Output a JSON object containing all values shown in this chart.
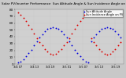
{
  "title": "Solar PV/Inverter Performance  Sun Altitude Angle & Sun Incidence Angle on PV Panels",
  "title_fontsize": 3.0,
  "blue_label": "Sun Altitude Angle",
  "red_label": "Sun Incidence Angle on PV",
  "background_color": "#c8c8c8",
  "plot_bg_color": "#d0d0d0",
  "blue_color": "#0000dd",
  "red_color": "#dd0000",
  "dot_size": 1.8,
  "ylim": [
    0,
    80
  ],
  "ytick_labels": [
    "0",
    "10",
    "20",
    "30",
    "40",
    "50",
    "60",
    "70",
    "80"
  ],
  "ytick_vals": [
    0,
    10,
    20,
    30,
    40,
    50,
    60,
    70,
    80
  ],
  "ylabel_fontsize": 3.0,
  "xlabel_fontsize": 2.5,
  "grid_color": "#bbbbbb",
  "legend_fontsize": 2.5,
  "blue_x": [
    0,
    1,
    2,
    3,
    4,
    5,
    6,
    7,
    8,
    9,
    10,
    11,
    12,
    13,
    14,
    15,
    16,
    17,
    18,
    19,
    20,
    21,
    22,
    23,
    24,
    25,
    26,
    27,
    28,
    29,
    30,
    31,
    32,
    33,
    34,
    35,
    36,
    37,
    38
  ],
  "blue_y": [
    2,
    4,
    7,
    11,
    16,
    21,
    27,
    33,
    39,
    44,
    48,
    51,
    53,
    54,
    53,
    51,
    48,
    44,
    39,
    33,
    27,
    21,
    16,
    11,
    7,
    4,
    2,
    33,
    39,
    44,
    48,
    51,
    53,
    54,
    53,
    51,
    48,
    44,
    39
  ],
  "red_x": [
    0,
    1,
    2,
    3,
    4,
    5,
    6,
    7,
    8,
    9,
    10,
    11,
    12,
    13,
    14,
    15,
    16,
    17,
    18,
    19,
    20,
    21,
    22,
    23,
    24,
    25,
    26,
    27,
    28,
    29,
    30,
    31,
    32,
    33,
    34,
    35,
    36,
    37,
    38
  ],
  "red_y": [
    75,
    72,
    68,
    63,
    57,
    51,
    45,
    38,
    32,
    27,
    22,
    18,
    15,
    14,
    15,
    18,
    22,
    27,
    32,
    38,
    45,
    51,
    57,
    63,
    68,
    72,
    75,
    38,
    32,
    27,
    22,
    18,
    15,
    14,
    15,
    18,
    22,
    27,
    32
  ],
  "xtick_positions": [
    0,
    6,
    12,
    18,
    24,
    30,
    36
  ],
  "xtick_labels": [
    "3/4 07",
    "3/4 13",
    "3/4 19",
    "3/5 01",
    "3/5 07",
    "3/5 13",
    "3/5 19"
  ]
}
